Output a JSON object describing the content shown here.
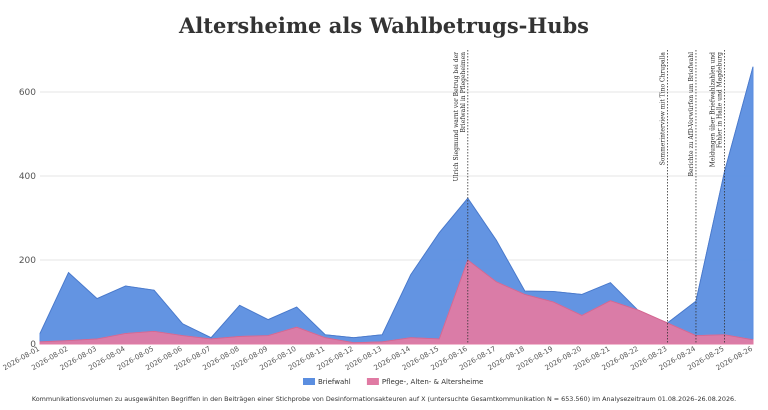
{
  "chart_data": {
    "type": "area",
    "title": "Altersheime als Wahlbetrugs-Hubs",
    "caption": "Kommunikationsvolumen zu ausgewählten Begriffen in den Beiträgen einer Stichprobe von Desinformationsakteuren auf X (untersuchte Gesamtkommunikation N = 653.560) im Analysezeitraum 01.08.2026–26.08.2026.",
    "x": [
      "2026-08-01",
      "2026-08-02",
      "2026-08-03",
      "2026-08-04",
      "2026-08-05",
      "2026-08-06",
      "2026-08-07",
      "2026-08-08",
      "2026-08-09",
      "2026-08-10",
      "2026-08-11",
      "2026-08-12",
      "2026-08-13",
      "2026-08-14",
      "2026-08-15",
      "2026-08-16",
      "2026-08-17",
      "2026-08-18",
      "2026-08-19",
      "2026-08-20",
      "2026-08-21",
      "2026-08-22",
      "2026-08-23",
      "2026-08-24",
      "2026-08-25",
      "2026-08-26"
    ],
    "ylim": [
      0,
      700
    ],
    "yticks": [
      0,
      200,
      400,
      600
    ],
    "grid": true,
    "legend_position": "bottom",
    "series": [
      {
        "name": "Briefwahl",
        "color": "#5b8ee0",
        "values": [
          25,
          170,
          108,
          138,
          128,
          48,
          15,
          92,
          58,
          88,
          22,
          15,
          22,
          165,
          265,
          347,
          247,
          126,
          125,
          118,
          146,
          78,
          50,
          102,
          410,
          660
        ]
      },
      {
        "name": "Pflege-, Alten- & Altersheime",
        "color": "#e07aa3",
        "values": [
          5,
          8,
          12,
          25,
          30,
          20,
          12,
          18,
          20,
          40,
          15,
          3,
          5,
          15,
          12,
          200,
          148,
          118,
          100,
          68,
          103,
          80,
          50,
          20,
          22,
          10
        ]
      }
    ],
    "annotations": [
      {
        "x": "2026-08-16",
        "text": [
          "Ulrich Siegmund warnt vor Betrug bei der",
          "Briefwahl in Pflegeheimen"
        ]
      },
      {
        "x": "2026-08-23",
        "text": [
          "Sommerinterview mit Tino Chrupalla"
        ]
      },
      {
        "x": "2026-08-24",
        "text": [
          "Berichte zu AfD-Vorwürfen um Briefwahl"
        ]
      },
      {
        "x": "2026-08-25",
        "text": [
          "Meldungen über Briefwahlzahlen und",
          "Fehler in Halle und Magdeburg"
        ]
      }
    ]
  }
}
